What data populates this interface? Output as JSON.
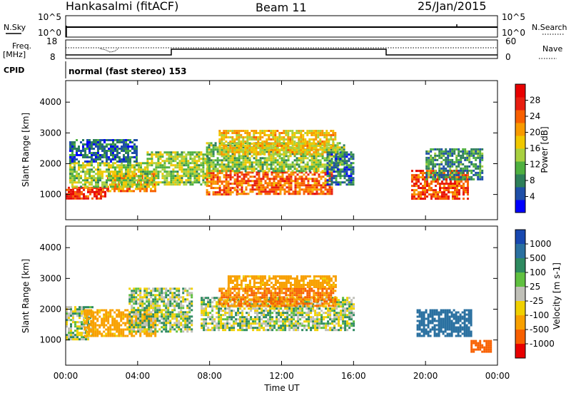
{
  "header": {
    "station": "Hankasalmi (fitACF)",
    "beam": "Beam 11",
    "date": "25/Jan/2015"
  },
  "status_panel": {
    "nsky_label": "N.Sky",
    "nsky_ticks": [
      "10^5",
      "10^0"
    ],
    "nsearch_label": "N.Search",
    "nsearch_ticks": [
      "10^5",
      "10^0"
    ],
    "freq_label": "Freq.",
    "freq_unit": "[MHz]",
    "freq_ticks": [
      "18",
      "8"
    ],
    "nave_label": "Nave",
    "nave_ticks": [
      "60",
      "0"
    ],
    "cpid_label": "CPID",
    "cpid_text": "normal (fast stereo) 153"
  },
  "chart_data": [
    {
      "type": "heatmap",
      "panel": "power",
      "ylabel": "Slant Range [km]",
      "xlabel": "Time UT",
      "x_ticks": [
        "00:00",
        "04:00",
        "08:00",
        "12:00",
        "16:00",
        "20:00",
        "00:00"
      ],
      "y_ticks": [
        "1000",
        "2000",
        "3000",
        "4000"
      ],
      "xlim_hours": [
        0,
        24
      ],
      "ylim_km": [
        180,
        4700
      ],
      "colorbar": {
        "label": "Power [dB]",
        "ticks": [
          "4",
          "8",
          "12",
          "16",
          "20",
          "24",
          "28"
        ],
        "colors": [
          "#0000ff",
          "#1f4fa8",
          "#2e7f5a",
          "#4fb040",
          "#a8d040",
          "#f0c800",
          "#f89a00",
          "#f86000",
          "#e81e10",
          "#e80000"
        ]
      },
      "regions": [
        {
          "t0": 0.0,
          "t1": 2.3,
          "r0": 850,
          "r1": 1250,
          "value": 27
        },
        {
          "t0": 2.3,
          "t1": 5.0,
          "r0": 1100,
          "r1": 1700,
          "value": 22
        },
        {
          "t0": 0.2,
          "t1": 4.5,
          "r0": 1250,
          "r1": 2050,
          "value": 14
        },
        {
          "t0": 0.2,
          "t1": 4.0,
          "r0": 2050,
          "r1": 2800,
          "value": 6
        },
        {
          "t0": 4.5,
          "t1": 8.0,
          "r0": 1300,
          "r1": 2400,
          "value": 14
        },
        {
          "t0": 7.8,
          "t1": 9.5,
          "r0": 1000,
          "r1": 1800,
          "value": 24
        },
        {
          "t0": 9.5,
          "t1": 14.8,
          "r0": 1000,
          "r1": 1750,
          "value": 24
        },
        {
          "t0": 7.8,
          "t1": 15.5,
          "r0": 1750,
          "r1": 2700,
          "value": 13
        },
        {
          "t0": 8.5,
          "t1": 15.0,
          "r0": 2300,
          "r1": 3100,
          "value": 18
        },
        {
          "t0": 14.5,
          "t1": 16.0,
          "r0": 1300,
          "r1": 2400,
          "value": 7
        },
        {
          "t0": 19.2,
          "t1": 22.3,
          "r0": 850,
          "r1": 1800,
          "value": 25
        },
        {
          "t0": 20.0,
          "t1": 23.2,
          "r0": 1500,
          "r1": 2500,
          "value": 9
        }
      ]
    },
    {
      "type": "heatmap",
      "panel": "velocity",
      "ylabel": "Slant Range [km]",
      "xlabel": "Time UT",
      "x_ticks": [
        "00:00",
        "04:00",
        "08:00",
        "12:00",
        "16:00",
        "20:00",
        "00:00"
      ],
      "y_ticks": [
        "1000",
        "2000",
        "3000",
        "4000"
      ],
      "xlim_hours": [
        0,
        24
      ],
      "ylim_km": [
        180,
        4700
      ],
      "colorbar": {
        "label": "Velocity [m s-1]",
        "ticks": [
          "1000",
          "500",
          "100",
          "25",
          "-25",
          "-100",
          "-500",
          "-1000"
        ],
        "colors": [
          "#1848b0",
          "#2a70a0",
          "#2e8a60",
          "#60c040",
          "#c0c0b8",
          "#f0d000",
          "#f8a000",
          "#f86000",
          "#e80000"
        ]
      },
      "regions": [
        {
          "t0": 0.0,
          "t1": 1.5,
          "r0": 1000,
          "r1": 2100,
          "value": 0
        },
        {
          "t0": 1.0,
          "t1": 5.0,
          "r0": 1100,
          "r1": 2000,
          "value": -150
        },
        {
          "t0": 3.5,
          "t1": 7.0,
          "r0": 1300,
          "r1": 2700,
          "value": 0
        },
        {
          "t0": 7.5,
          "t1": 16.0,
          "r0": 1300,
          "r1": 2400,
          "value": 0
        },
        {
          "t0": 8.5,
          "t1": 15.0,
          "r0": 2100,
          "r1": 2700,
          "value": -300
        },
        {
          "t0": 9.0,
          "t1": 15.0,
          "r0": 2700,
          "r1": 3100,
          "value": -150
        },
        {
          "t0": 19.5,
          "t1": 22.5,
          "r0": 1100,
          "r1": 2000,
          "value": 200
        },
        {
          "t0": 22.5,
          "t1": 23.6,
          "r0": 600,
          "r1": 1000,
          "value": -500
        }
      ]
    }
  ]
}
